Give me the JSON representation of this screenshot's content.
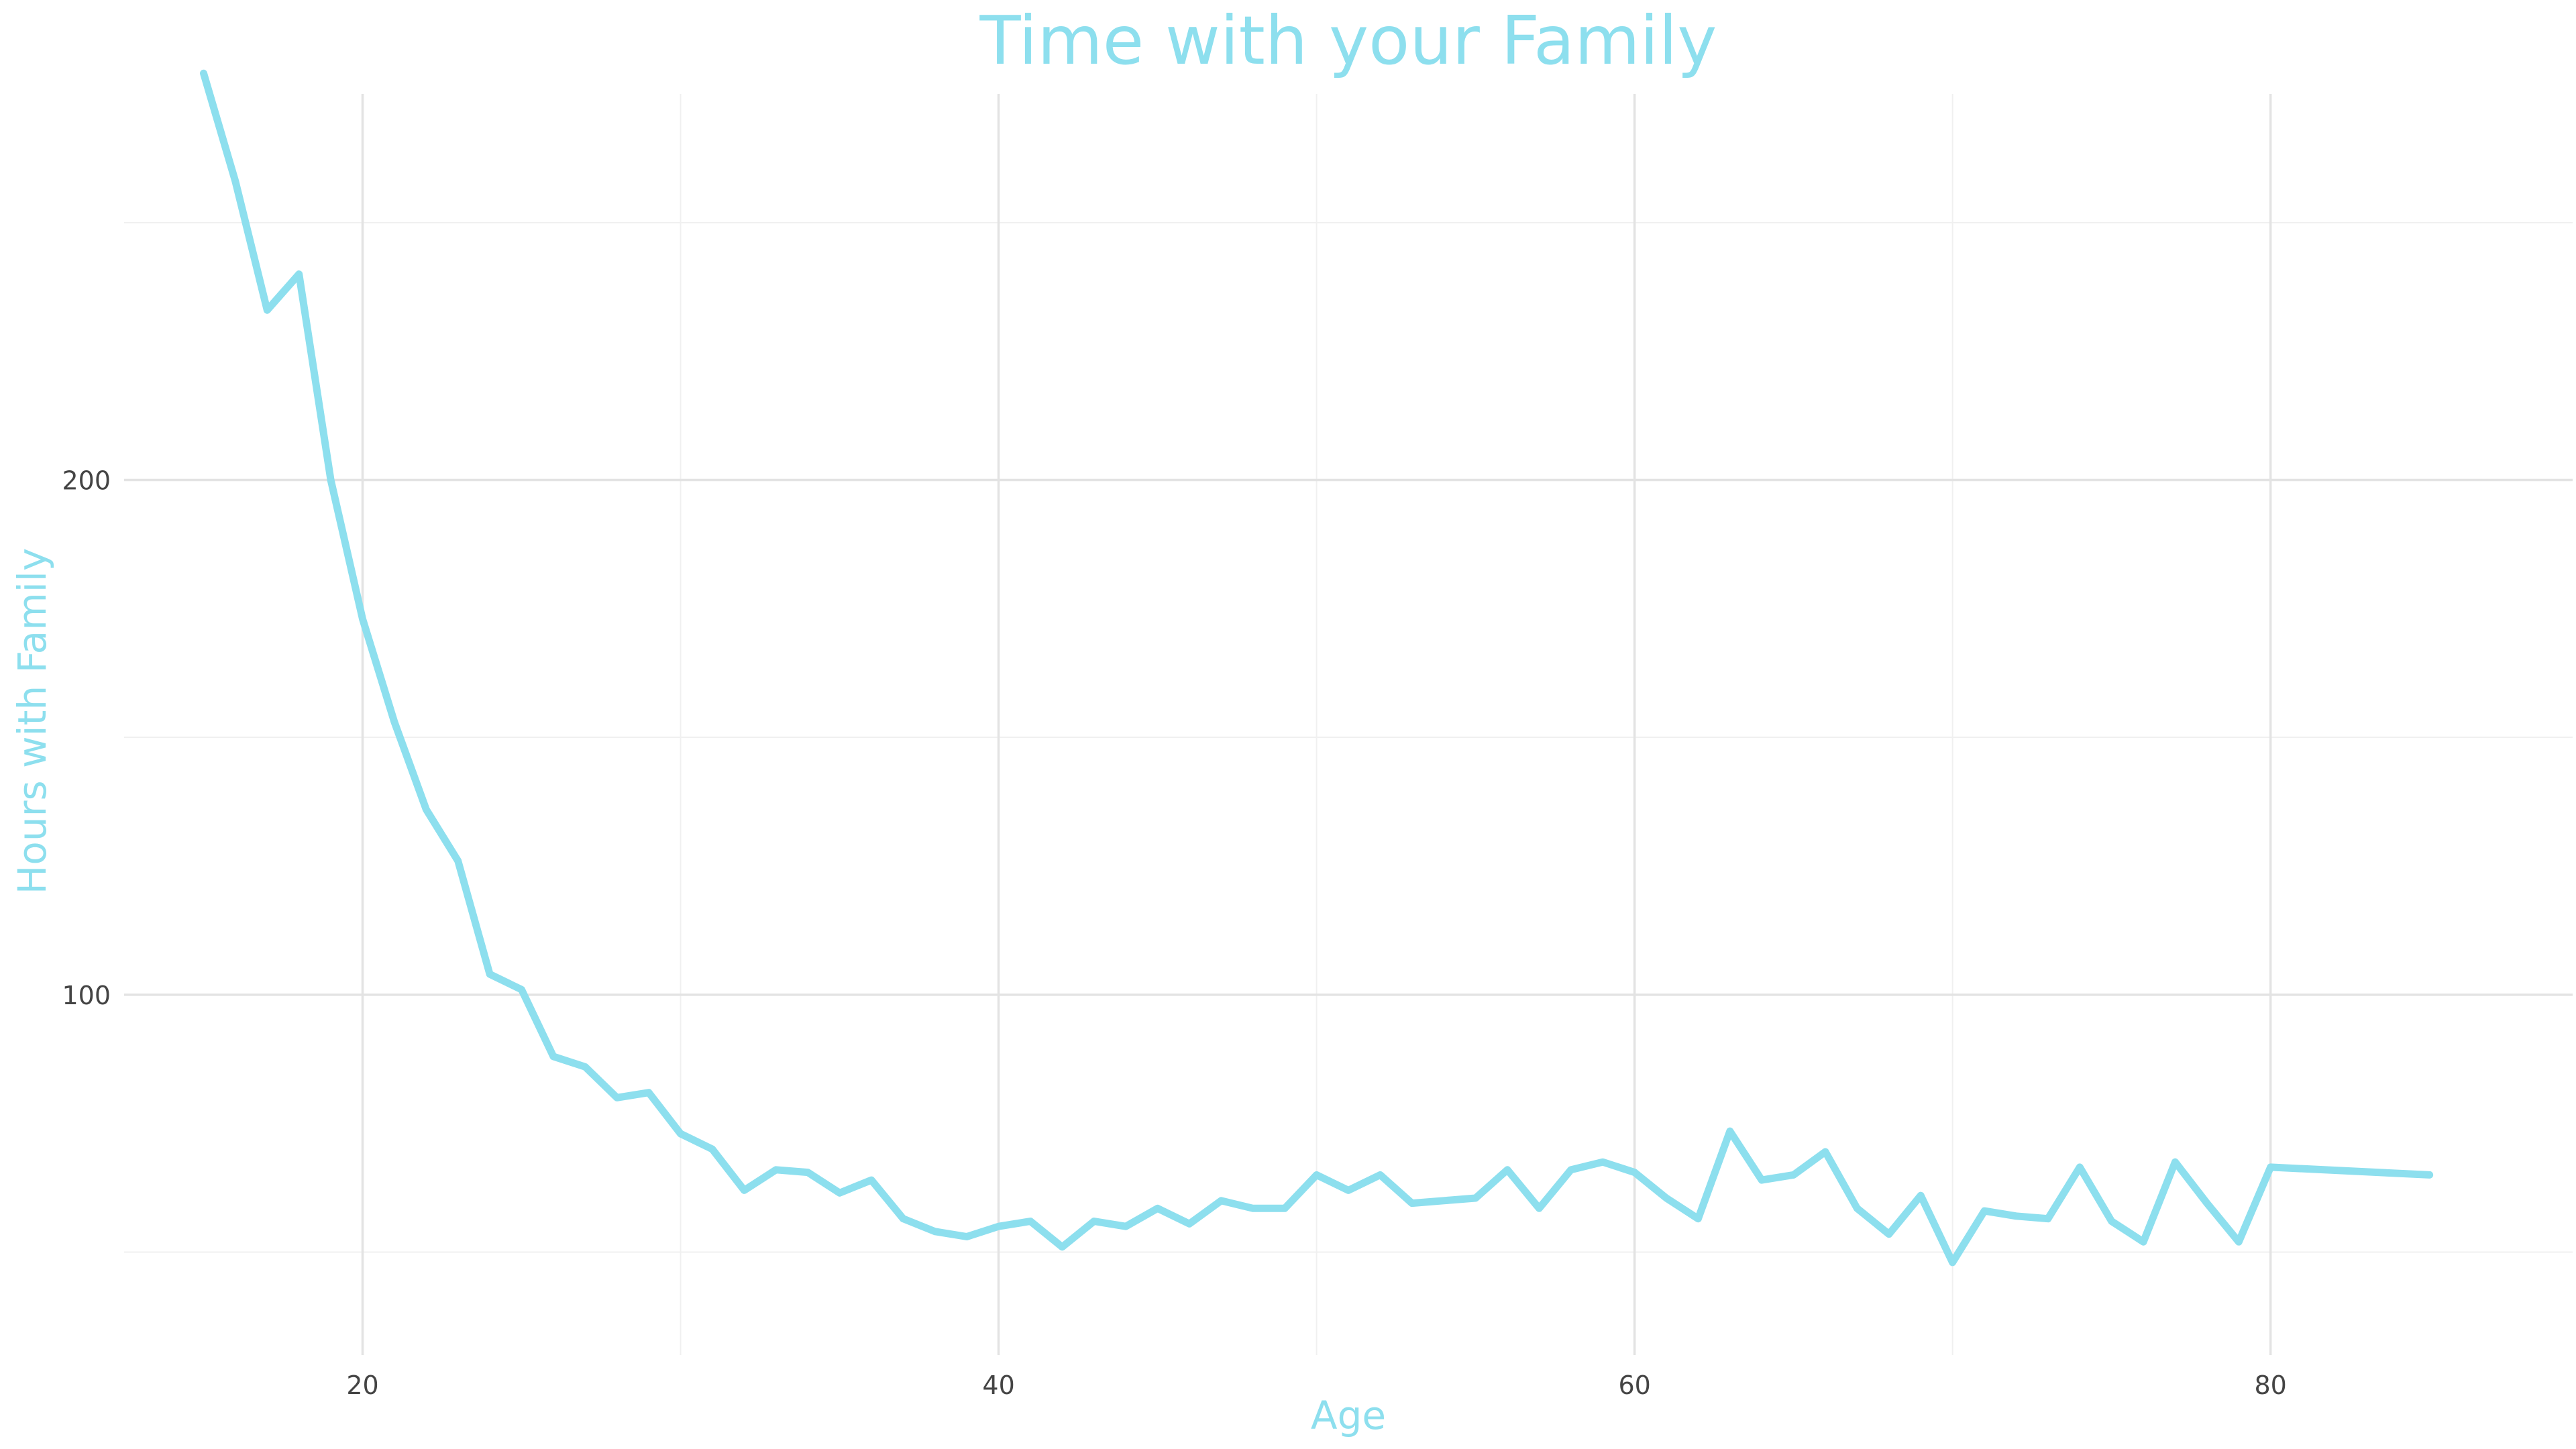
{
  "chart_data": {
    "type": "line",
    "title": "Time with your Family",
    "xlabel": "Age",
    "ylabel": "Hours with Family",
    "xlim": [
      12.5,
      89.5
    ],
    "ylim": [
      30,
      275
    ],
    "x_ticks": [
      20,
      40,
      60,
      80
    ],
    "y_ticks": [
      100,
      200
    ],
    "x_minor": [
      30,
      50,
      70
    ],
    "y_minor": [
      50,
      150,
      250
    ],
    "grid": true,
    "legend": "none",
    "line_color": "#8ddfee",
    "x": [
      15,
      16,
      17,
      18,
      19,
      20,
      21,
      22,
      23,
      24,
      25,
      26,
      27,
      28,
      29,
      30,
      31,
      32,
      33,
      34,
      35,
      36,
      37,
      38,
      39,
      40,
      41,
      42,
      43,
      44,
      45,
      46,
      47,
      48,
      49,
      50,
      51,
      52,
      53,
      54,
      55,
      56,
      57,
      58,
      59,
      60,
      61,
      62,
      63,
      64,
      65,
      66,
      67,
      68,
      69,
      70,
      71,
      72,
      73,
      74,
      75,
      76,
      77,
      78,
      79,
      80,
      85
    ],
    "y": [
      279,
      258,
      233,
      240,
      200,
      173,
      153,
      136,
      126,
      104,
      101,
      88,
      86,
      80,
      81,
      73,
      70,
      62,
      66,
      65.5,
      61.5,
      64,
      56.5,
      54,
      53,
      55,
      56,
      51,
      56,
      55,
      58.5,
      55.5,
      60,
      58.5,
      58.5,
      65,
      62,
      65,
      59.5,
      60,
      60.5,
      66,
      58.5,
      66,
      67.5,
      65.5,
      60.5,
      56.5,
      73.5,
      64,
      65,
      69.5,
      58.5,
      53.5,
      61,
      48,
      58,
      57,
      56.5,
      66.5,
      56,
      52,
      67.5,
      59.5,
      52,
      66.5,
      65
    ]
  }
}
